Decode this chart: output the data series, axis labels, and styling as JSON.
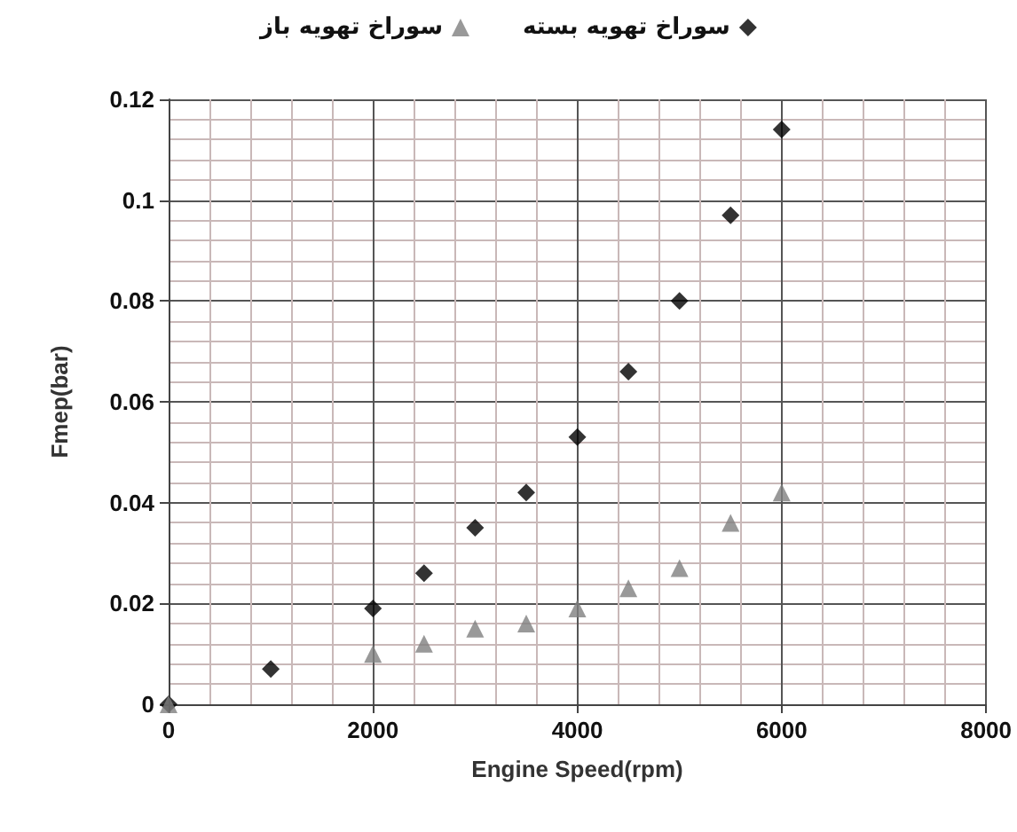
{
  "chart_data": {
    "type": "scatter",
    "xlabel": "Engine Speed(rpm)",
    "ylabel": "Fmep(bar)",
    "xlim": [
      0,
      8000
    ],
    "xticks": [
      0,
      2000,
      4000,
      6000,
      8000
    ],
    "ylim": [
      0,
      0.12
    ],
    "yticks": [
      0,
      0.02,
      0.04,
      0.06,
      0.08,
      0.1,
      0.12
    ],
    "grid": true,
    "legend": "top",
    "series": [
      {
        "name": "سوراخ تهویه بسته",
        "color": "#000000",
        "marker": "diamond",
        "x": [
          0,
          1000,
          2000,
          2500,
          3000,
          3500,
          4000,
          4500,
          5000,
          5500,
          6000
        ],
        "values": [
          0,
          0.007,
          0.019,
          0.026,
          0.035,
          0.042,
          0.053,
          0.066,
          0.08,
          0.097,
          0.114
        ]
      },
      {
        "name": "سوراخ تهویه باز",
        "color": "#7f7f7f",
        "marker": "triangle",
        "x": [
          0,
          2000,
          2500,
          3000,
          3500,
          4000,
          4500,
          5000,
          5500,
          6000
        ],
        "values": [
          0,
          0.01,
          0.012,
          0.015,
          0.016,
          0.019,
          0.023,
          0.027,
          0.036,
          0.042
        ]
      }
    ]
  }
}
